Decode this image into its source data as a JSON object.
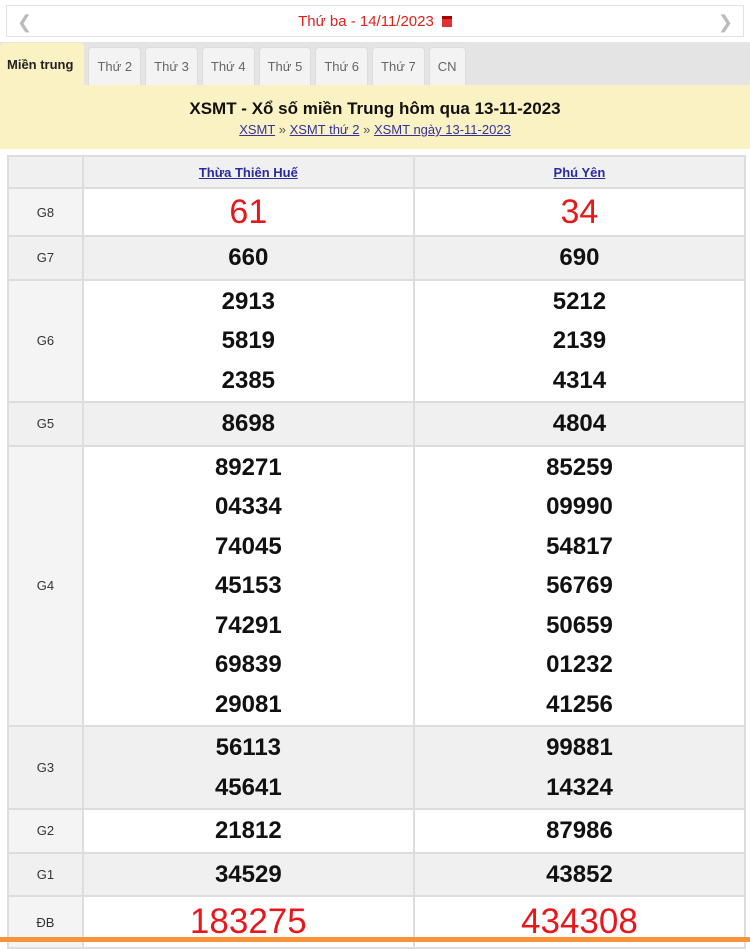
{
  "date_bar": {
    "prev_icon": "chevron-left",
    "next_icon": "chevron-right",
    "date_label": "Thứ ba -  14/11/2023",
    "calendar_icon": "calendar"
  },
  "tabs": [
    "Miền trung",
    "Thứ 2",
    "Thứ 3",
    "Thứ 4",
    "Thứ 5",
    "Thứ 6",
    "Thứ 7",
    "CN"
  ],
  "header": {
    "title": "XSMT - Xổ số miền Trung hôm qua 13-11-2023",
    "breadcrumb": [
      "XSMT",
      "XSMT thứ 2",
      "XSMT ngày 13-11-2023"
    ],
    "sep": "»"
  },
  "table": {
    "provinces": [
      "Thừa Thiên Huế",
      "Phú Yên"
    ],
    "rows": [
      {
        "label": "G8",
        "values": [
          [
            "61"
          ],
          [
            "34"
          ]
        ]
      },
      {
        "label": "G7",
        "values": [
          [
            "660"
          ],
          [
            "690"
          ]
        ]
      },
      {
        "label": "G6",
        "values": [
          [
            "2913",
            "5819",
            "2385"
          ],
          [
            "5212",
            "2139",
            "4314"
          ]
        ]
      },
      {
        "label": "G5",
        "values": [
          [
            "8698"
          ],
          [
            "4804"
          ]
        ]
      },
      {
        "label": "G4",
        "values": [
          [
            "89271",
            "04334",
            "74045",
            "45153",
            "74291",
            "69839",
            "29081"
          ],
          [
            "85259",
            "09990",
            "54817",
            "56769",
            "50659",
            "01232",
            "41256"
          ]
        ]
      },
      {
        "label": "G3",
        "values": [
          [
            "56113",
            "45641"
          ],
          [
            "99881",
            "14324"
          ]
        ]
      },
      {
        "label": "G2",
        "values": [
          [
            "21812"
          ],
          [
            "87986"
          ]
        ]
      },
      {
        "label": "G1",
        "values": [
          [
            "34529"
          ],
          [
            "43852"
          ]
        ]
      },
      {
        "label": "ĐB",
        "values": [
          [
            "183275"
          ],
          [
            "434308"
          ]
        ]
      }
    ]
  },
  "colors": {
    "accent_red": "#e8171b",
    "header_bg": "#fbf2c4",
    "footer_bar": "#f7943a"
  }
}
